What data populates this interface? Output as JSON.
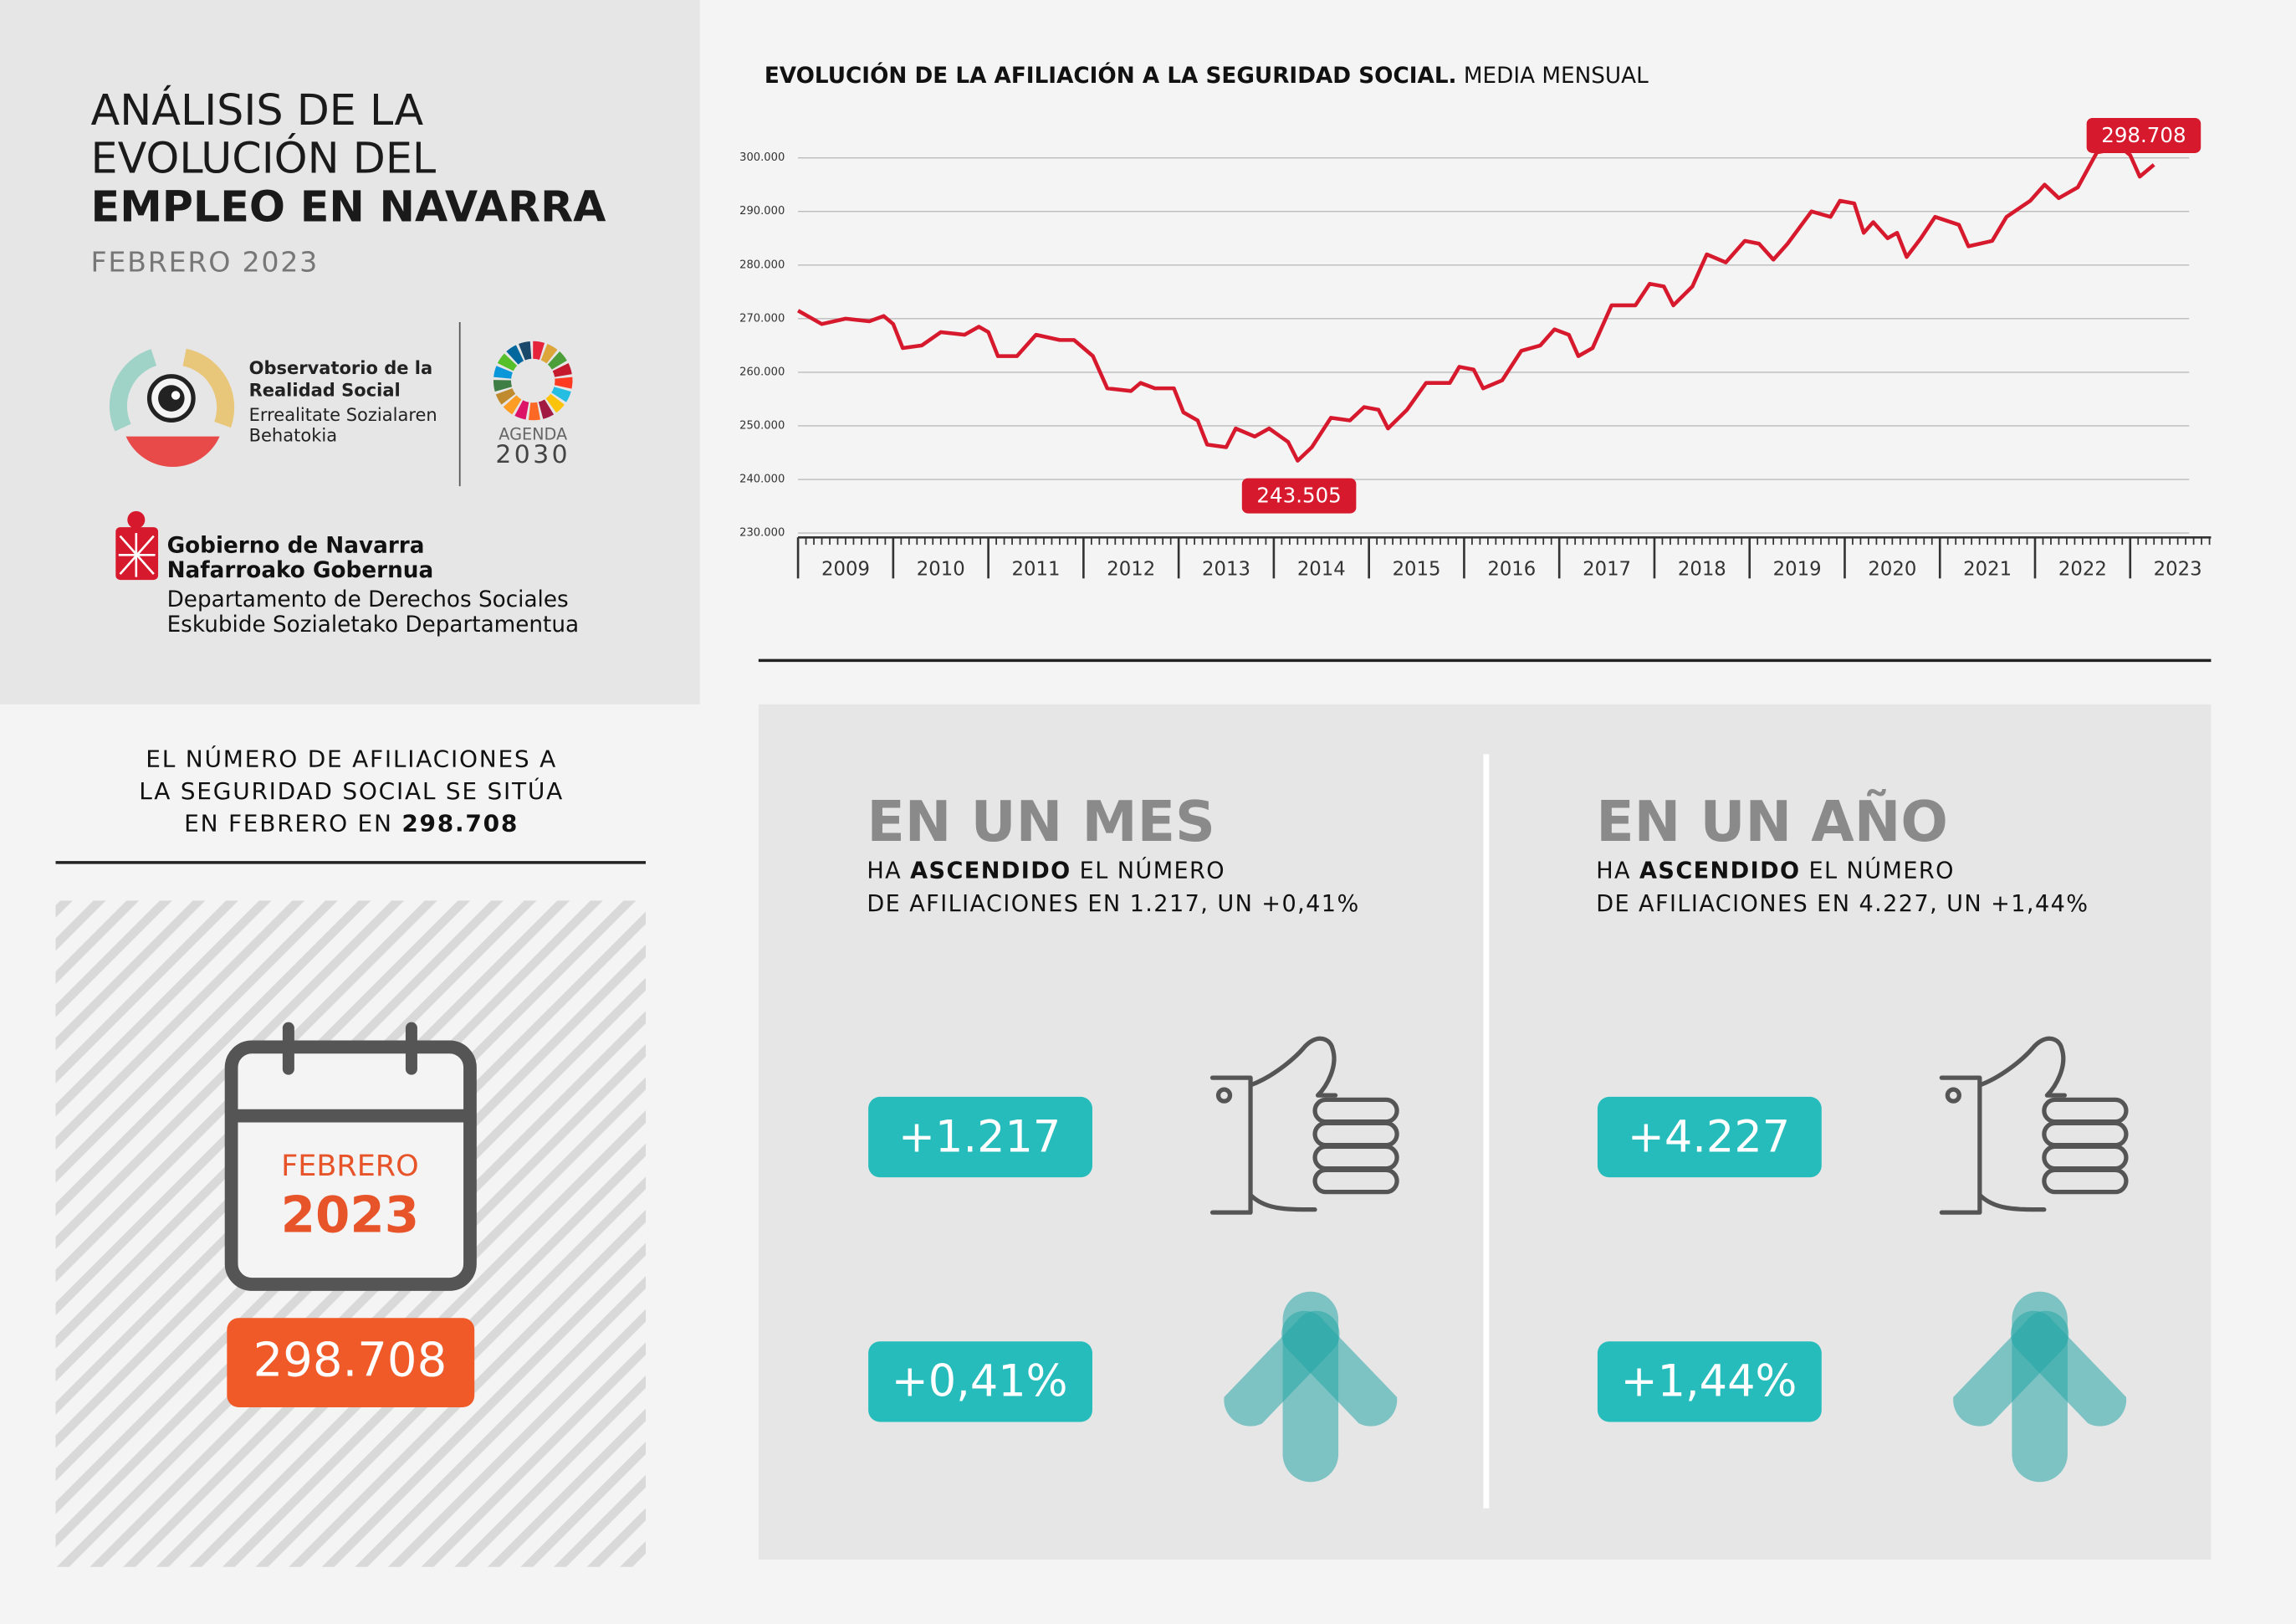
{
  "header": {
    "title_lines": [
      "ANÁLISIS DE LA",
      "EVOLUCIÓN DEL",
      "EMPLEO EN NAVARRA"
    ],
    "subtitle": "FEBRERO 2023"
  },
  "logos": {
    "observatorio": [
      "Observatorio de la",
      "Realidad Social",
      "Errealitate Sozialaren",
      "Behatokia"
    ],
    "agenda": [
      "AGENDA",
      "2030"
    ],
    "gobierno": [
      "Gobierno de Navarra",
      "Nafarroako Gobernua",
      "Departamento de Derechos Sociales",
      "Eskubide Sozialetako Departamentua"
    ]
  },
  "summary": {
    "lines": [
      "EL NÚMERO DE AFILIACIONES A",
      "LA SEGURIDAD SOCIAL SE SITÚA",
      "EN FEBRERO EN "
    ],
    "highlight": "298.708"
  },
  "calendar": {
    "month": "FEBRERO",
    "year": "2023",
    "value": "298.708"
  },
  "panels": [
    {
      "heading": "EN UN MES",
      "line1": [
        "HA ",
        "ASCENDIDO",
        " EL NÚMERO"
      ],
      "line2": "DE AFILIACIONES EN 1.217, UN +0,41%",
      "badges": [
        "+1.217",
        "+0,41%"
      ]
    },
    {
      "heading": "EN UN AÑO",
      "line1": [
        "HA ",
        "ASCENDIDO",
        " EL NÚMERO"
      ],
      "line2": "DE AFILIACIONES EN 4.227, UN +1,44%",
      "badges": [
        "+4.227",
        "+1,44%"
      ]
    }
  ],
  "chart_data": {
    "type": "line",
    "title": "EVOLUCIÓN DE LA AFILIACIÓN A LA SEGURIDAD SOCIAL.",
    "subtitle": "MEDIA MENSUAL",
    "x": [
      2009.0,
      2009.25,
      2009.5,
      2009.75,
      2009.9,
      2010.0,
      2010.1,
      2010.3,
      2010.5,
      2010.75,
      2010.9,
      2011.0,
      2011.1,
      2011.3,
      2011.5,
      2011.75,
      2011.9,
      2012.1,
      2012.25,
      2012.5,
      2012.6,
      2012.75,
      2012.95,
      2013.05,
      2013.2,
      2013.3,
      2013.5,
      2013.6,
      2013.8,
      2013.95,
      2014.15,
      2014.25,
      2014.4,
      2014.6,
      2014.8,
      2014.95,
      2015.1,
      2015.2,
      2015.4,
      2015.6,
      2015.85,
      2015.95,
      2016.1,
      2016.2,
      2016.4,
      2016.6,
      2016.8,
      2016.95,
      2017.1,
      2017.2,
      2017.35,
      2017.55,
      2017.8,
      2017.95,
      2018.1,
      2018.2,
      2018.4,
      2018.55,
      2018.75,
      2018.95,
      2019.1,
      2019.25,
      2019.4,
      2019.65,
      2019.85,
      2019.95,
      2020.1,
      2020.2,
      2020.3,
      2020.45,
      2020.55,
      2020.65,
      2020.8,
      2020.95,
      2021.2,
      2021.3,
      2021.55,
      2021.7,
      2021.95,
      2022.1,
      2022.25,
      2022.45,
      2022.65,
      2022.8,
      2022.9,
      2023.0,
      2023.1,
      2023.25
    ],
    "series": [
      {
        "name": "Afiliación",
        "color": "#d7192d",
        "values": [
          271500,
          269000,
          270000,
          269500,
          270500,
          269000,
          264500,
          265000,
          267500,
          267000,
          268500,
          267500,
          263000,
          263000,
          267000,
          266000,
          266000,
          263000,
          257000,
          256500,
          258000,
          257000,
          257000,
          252500,
          251000,
          246500,
          246000,
          249500,
          248000,
          249500,
          247000,
          243505,
          246000,
          251500,
          251000,
          253500,
          253000,
          249500,
          253000,
          258000,
          258000,
          261000,
          260500,
          257000,
          258500,
          264000,
          265000,
          268000,
          267000,
          263000,
          264500,
          272500,
          272500,
          276500,
          276000,
          272500,
          276000,
          282000,
          280500,
          284500,
          284000,
          281000,
          284000,
          290000,
          289000,
          292000,
          291500,
          286000,
          288000,
          285000,
          286000,
          281500,
          285000,
          289000,
          287500,
          283500,
          284500,
          289000,
          292000,
          295000,
          292500,
          294500,
          301000,
          301500,
          302000,
          300500,
          296500,
          298708
        ]
      }
    ],
    "annotations": [
      {
        "x": 2014.25,
        "y": 243505,
        "label": "243.505"
      },
      {
        "x": 2023.25,
        "y": 298708,
        "label": "298.708"
      }
    ],
    "xlim": [
      2009,
      2023.85
    ],
    "xticks": [
      2009,
      2010,
      2011,
      2012,
      2013,
      2014,
      2015,
      2016,
      2017,
      2018,
      2019,
      2020,
      2021,
      2022,
      2023
    ],
    "ylim": [
      230000,
      305000
    ],
    "yticks": [
      {
        "value": 230000,
        "label": "230.000"
      },
      {
        "value": 240000,
        "label": "240.000"
      },
      {
        "value": 250000,
        "label": "250.000"
      },
      {
        "value": 260000,
        "label": "260.000"
      },
      {
        "value": 270000,
        "label": "270.000"
      },
      {
        "value": 280000,
        "label": "280.000"
      },
      {
        "value": 290000,
        "label": "290.000"
      },
      {
        "value": 300000,
        "label": "300.000"
      }
    ],
    "grid": true
  }
}
